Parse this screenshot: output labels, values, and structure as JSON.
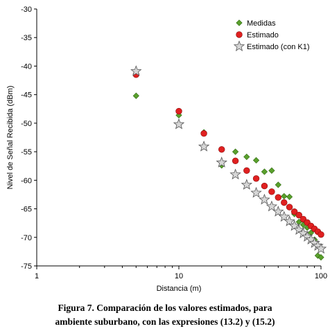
{
  "chart_data": {
    "type": "scatter",
    "xscale": "log",
    "xlim": [
      1,
      100
    ],
    "ylim": [
      -75,
      -30
    ],
    "xlabel": "Distancia (m)",
    "ylabel": "Nivel de Señal Recibida (dBm)",
    "x_ticks": [
      1,
      10,
      100
    ],
    "y_ticks": [
      -30,
      -35,
      -40,
      -45,
      -50,
      -55,
      -60,
      -65,
      -70,
      -75
    ],
    "x_tick_labels": [
      "1",
      "10",
      "100"
    ],
    "y_tick_labels": [
      "-30",
      "-35",
      "-40",
      "-45",
      "-50",
      "-55",
      "-60",
      "-65",
      "-70",
      "-75"
    ],
    "grid": false,
    "legend_position": "top-right",
    "series": [
      {
        "name": "Medidas",
        "marker": "diamond",
        "color": "#5aa02c",
        "x": [
          5,
          10,
          15,
          20,
          25,
          30,
          35,
          40,
          45,
          50,
          55,
          60,
          65,
          70,
          75,
          80,
          85,
          90,
          95,
          100
        ],
        "y": [
          -45.2,
          -48.6,
          -51.6,
          -57.4,
          -55,
          -55.9,
          -56.5,
          -58.5,
          -58.3,
          -60.8,
          -62.8,
          -62.9,
          -65.9,
          -67.3,
          -67.8,
          -68.3,
          -69.2,
          -70.4,
          -73.2,
          -73.5
        ]
      },
      {
        "name": "Estimado",
        "marker": "circle",
        "color": "#e02020",
        "x": [
          5,
          10,
          15,
          20,
          25,
          30,
          35,
          40,
          45,
          50,
          55,
          60,
          65,
          70,
          75,
          80,
          85,
          90,
          95,
          100
        ],
        "y": [
          -41.5,
          -47.9,
          -51.8,
          -54.6,
          -56.6,
          -58.3,
          -59.7,
          -61,
          -62,
          -63,
          -63.9,
          -64.7,
          -65.5,
          -66.1,
          -66.8,
          -67.4,
          -68,
          -68.5,
          -69,
          -69.5
        ]
      },
      {
        "name": "Estimado (con K1)",
        "marker": "star",
        "color": "#8c8c8c",
        "x": [
          5,
          10,
          15,
          20,
          25,
          30,
          35,
          40,
          45,
          50,
          55,
          60,
          65,
          70,
          75,
          80,
          85,
          90,
          95,
          100
        ],
        "y": [
          -40.9,
          -50.2,
          -54.1,
          -56.9,
          -59,
          -60.8,
          -62.2,
          -63.4,
          -64.6,
          -65.5,
          -66.4,
          -67.2,
          -68,
          -68.7,
          -69.3,
          -69.9,
          -70.4,
          -71,
          -71.5,
          -72
        ]
      }
    ]
  },
  "caption": {
    "line1": "Figura 7. Comparación de los valores estimados, para",
    "line2": "ambiente suburbano, con las expresiones (13.2) y (15.2)"
  }
}
